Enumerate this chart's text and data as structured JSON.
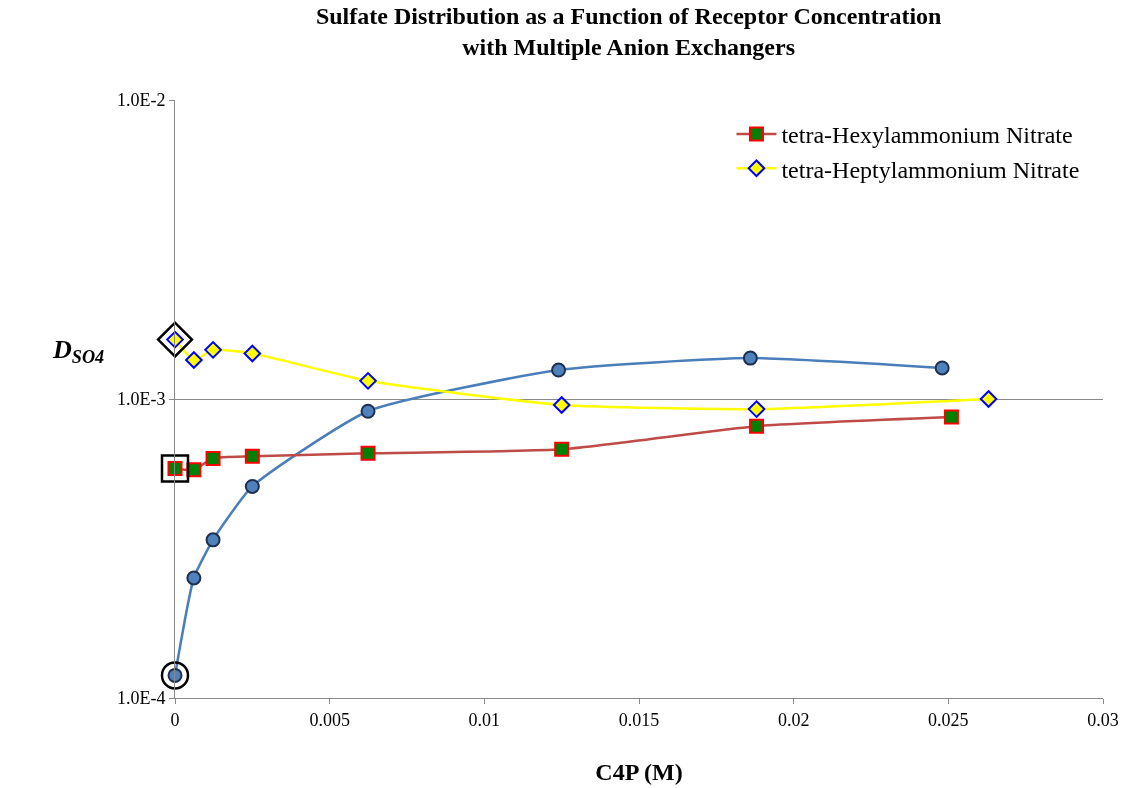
{
  "chart_data": {
    "type": "line",
    "title": "Sulfate Distribution as a Function of Receptor Concentration\nwith Multiple Anion Exchangers",
    "xlabel": "C4P (M)",
    "ylabel": "D$_{SO4}$",
    "log": "y",
    "grid": "y",
    "legend": "top right",
    "line_style": "solid",
    "xlim": [
      0,
      0.03
    ],
    "xticks": [
      0,
      0.005,
      0.01,
      0.015,
      0.02,
      0.025,
      0.03
    ],
    "ylim": [
      0.0001,
      0.01
    ],
    "yticks": [
      {
        "value": 0.0001,
        "label": "1.0E-4"
      },
      {
        "value": 0.001,
        "label": "1.0E-3"
      },
      {
        "value": 0.01,
        "label": "1.0E-2"
      }
    ],
    "series": [
      {
        "color": "#4a7ebb",
        "marker": "circle",
        "x": [
          0,
          0.00061,
          0.00123,
          0.0025,
          0.00624,
          0.0124,
          0.0186,
          0.0248
        ],
        "values": [
          0.000119,
          0.000252,
          0.000338,
          0.00051,
          0.00091,
          0.00125,
          0.00137,
          0.00127
        ]
      },
      {
        "name": "tetra-Hexylammonium Nitrate",
        "color": "#be4b48",
        "marker": "square",
        "x": [
          0,
          0.00061,
          0.00123,
          0.0025,
          0.00624,
          0.0125,
          0.0188,
          0.0251
        ],
        "values": [
          0.000586,
          0.00058,
          0.000633,
          0.000643,
          0.000658,
          0.000679,
          0.000811,
          0.00087
        ]
      },
      {
        "name": "tetra-Heptylammonium Nitrate",
        "color": "#ffff00",
        "marker": "diamond",
        "x": [
          0,
          0.00061,
          0.00123,
          0.0025,
          0.00624,
          0.0125,
          0.0188,
          0.0263
        ],
        "values": [
          0.00158,
          0.00135,
          0.00146,
          0.00142,
          0.00115,
          0.000955,
          0.000925,
          0.001
        ]
      },
      {
        "type": "scatter",
        "color": "#000000",
        "marker": "circle",
        "x": [
          0
        ],
        "values": [
          0.000119
        ]
      },
      {
        "type": "scatter",
        "color": "#000000",
        "marker": "square",
        "x": [
          0
        ],
        "values": [
          0.000586
        ]
      },
      {
        "type": "scatter",
        "color": "#000000",
        "marker": "diamond",
        "x": [
          0
        ],
        "values": [
          0.00158
        ]
      }
    ]
  }
}
